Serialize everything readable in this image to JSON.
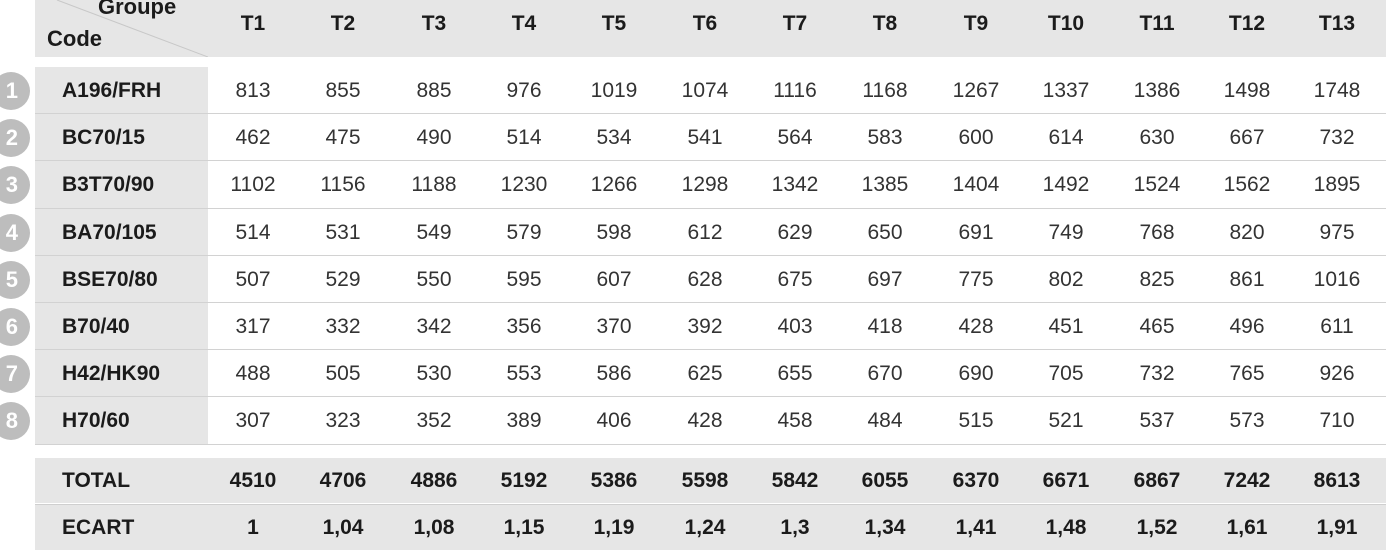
{
  "header": {
    "groupe_label": "Groupe",
    "code_label": "Code",
    "columns": [
      "T1",
      "T2",
      "T3",
      "T4",
      "T5",
      "T6",
      "T7",
      "T8",
      "T9",
      "T10",
      "T11",
      "T12",
      "T13"
    ]
  },
  "rows": [
    {
      "num": "1",
      "code": "A196/FRH",
      "values": [
        "813",
        "855",
        "885",
        "976",
        "1019",
        "1074",
        "1116",
        "1168",
        "1267",
        "1337",
        "1386",
        "1498",
        "1748"
      ]
    },
    {
      "num": "2",
      "code": "BC70/15",
      "values": [
        "462",
        "475",
        "490",
        "514",
        "534",
        "541",
        "564",
        "583",
        "600",
        "614",
        "630",
        "667",
        "732"
      ]
    },
    {
      "num": "3",
      "code": "B3T70/90",
      "values": [
        "1102",
        "1156",
        "1188",
        "1230",
        "1266",
        "1298",
        "1342",
        "1385",
        "1404",
        "1492",
        "1524",
        "1562",
        "1895"
      ]
    },
    {
      "num": "4",
      "code": "BA70/105",
      "values": [
        "514",
        "531",
        "549",
        "579",
        "598",
        "612",
        "629",
        "650",
        "691",
        "749",
        "768",
        "820",
        "975"
      ]
    },
    {
      "num": "5",
      "code": "BSE70/80",
      "values": [
        "507",
        "529",
        "550",
        "595",
        "607",
        "628",
        "675",
        "697",
        "775",
        "802",
        "825",
        "861",
        "1016"
      ]
    },
    {
      "num": "6",
      "code": "B70/40",
      "values": [
        "317",
        "332",
        "342",
        "356",
        "370",
        "392",
        "403",
        "418",
        "428",
        "451",
        "465",
        "496",
        "611"
      ]
    },
    {
      "num": "7",
      "code": "H42/HK90",
      "values": [
        "488",
        "505",
        "530",
        "553",
        "586",
        "625",
        "655",
        "670",
        "690",
        "705",
        "732",
        "765",
        "926"
      ]
    },
    {
      "num": "8",
      "code": "H70/60",
      "values": [
        "307",
        "323",
        "352",
        "389",
        "406",
        "428",
        "458",
        "484",
        "515",
        "521",
        "537",
        "573",
        "710"
      ]
    }
  ],
  "total": {
    "label": "TOTAL",
    "values": [
      "4510",
      "4706",
      "4886",
      "5192",
      "5386",
      "5598",
      "5842",
      "6055",
      "6370",
      "6671",
      "6867",
      "7242",
      "8613"
    ]
  },
  "ecart": {
    "label": "ECART",
    "values": [
      "1",
      "1,04",
      "1,08",
      "1,15",
      "1,19",
      "1,24",
      "1,3",
      "1,34",
      "1,41",
      "1,48",
      "1,52",
      "1,61",
      "1,91"
    ]
  }
}
